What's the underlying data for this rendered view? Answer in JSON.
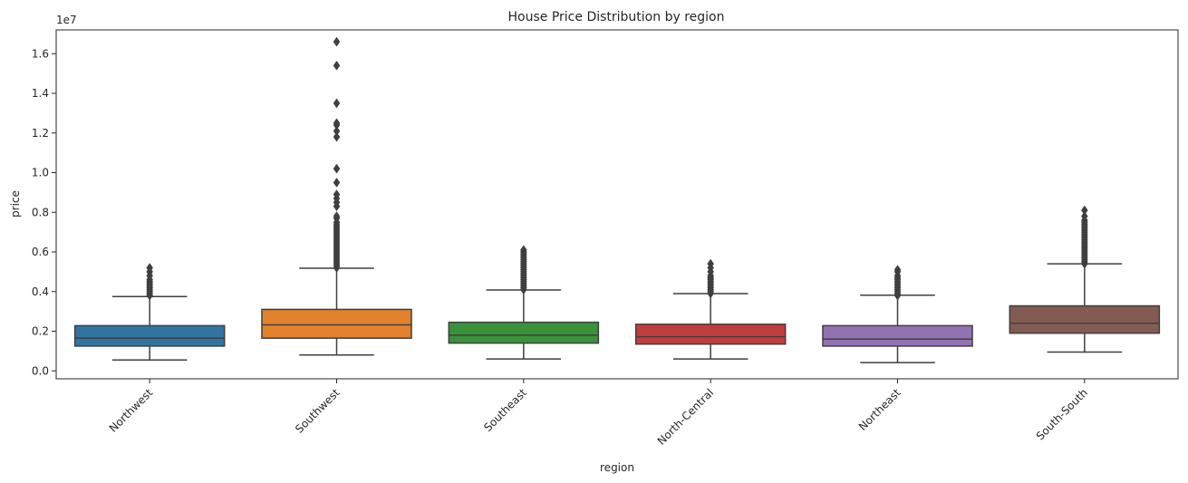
{
  "chart_data": {
    "type": "box",
    "title": "House Price Distribution by region",
    "xlabel": "region",
    "ylabel": "price",
    "offset_label": "1e7",
    "y_unit_multiplier": 10000000,
    "ylim": [
      -0.04,
      1.72
    ],
    "yticks": [
      0.0,
      0.2,
      0.4,
      0.6,
      0.8,
      1.0,
      1.2,
      1.4,
      1.6
    ],
    "yticklabels": [
      "0.0",
      "0.2",
      "0.4",
      "0.6",
      "0.8",
      "1.0",
      "1.2",
      "1.4",
      "1.6"
    ],
    "grid": false,
    "categories": [
      "Northwest",
      "Southwest",
      "Southeast",
      "North-Central",
      "Northeast",
      "South-South"
    ],
    "boxes": [
      {
        "category": "Northwest",
        "color": "#3274a1",
        "whisker_low": 0.055,
        "q1": 0.125,
        "median": 0.165,
        "q3": 0.228,
        "whisker_high": 0.375,
        "outliers": [
          0.38,
          0.39,
          0.4,
          0.41,
          0.42,
          0.43,
          0.44,
          0.45,
          0.46,
          0.48,
          0.5,
          0.52
        ]
      },
      {
        "category": "Southwest",
        "color": "#e1812c",
        "whisker_low": 0.08,
        "q1": 0.165,
        "median": 0.232,
        "q3": 0.31,
        "whisker_high": 0.518,
        "outliers": [
          0.52,
          0.53,
          0.54,
          0.55,
          0.56,
          0.57,
          0.58,
          0.59,
          0.6,
          0.61,
          0.62,
          0.63,
          0.64,
          0.65,
          0.66,
          0.67,
          0.68,
          0.69,
          0.7,
          0.71,
          0.72,
          0.73,
          0.74,
          0.75,
          0.77,
          0.78,
          0.83,
          0.85,
          0.87,
          0.89,
          0.95,
          1.02,
          1.18,
          1.21,
          1.24,
          1.25,
          1.35,
          1.54,
          1.66
        ]
      },
      {
        "category": "Southeast",
        "color": "#3a923a",
        "whisker_low": 0.06,
        "q1": 0.14,
        "median": 0.18,
        "q3": 0.245,
        "whisker_high": 0.408,
        "outliers": [
          0.41,
          0.42,
          0.43,
          0.44,
          0.45,
          0.46,
          0.47,
          0.48,
          0.49,
          0.5,
          0.51,
          0.52,
          0.53,
          0.54,
          0.55,
          0.56,
          0.57,
          0.58,
          0.59,
          0.6,
          0.61
        ]
      },
      {
        "category": "North-Central",
        "color": "#c03d3e",
        "whisker_low": 0.06,
        "q1": 0.135,
        "median": 0.172,
        "q3": 0.235,
        "whisker_high": 0.39,
        "outliers": [
          0.39,
          0.4,
          0.41,
          0.42,
          0.43,
          0.44,
          0.45,
          0.46,
          0.47,
          0.48,
          0.5,
          0.52,
          0.54
        ]
      },
      {
        "category": "Northeast",
        "color": "#9372b2",
        "whisker_low": 0.042,
        "q1": 0.125,
        "median": 0.16,
        "q3": 0.228,
        "whisker_high": 0.382,
        "outliers": [
          0.38,
          0.39,
          0.4,
          0.41,
          0.42,
          0.43,
          0.44,
          0.45,
          0.46,
          0.47,
          0.48,
          0.5,
          0.51
        ]
      },
      {
        "category": "South-South",
        "color": "#845b53",
        "whisker_low": 0.095,
        "q1": 0.19,
        "median": 0.24,
        "q3": 0.328,
        "whisker_high": 0.54,
        "outliers": [
          0.54,
          0.55,
          0.56,
          0.57,
          0.58,
          0.59,
          0.6,
          0.61,
          0.62,
          0.63,
          0.64,
          0.65,
          0.66,
          0.67,
          0.68,
          0.69,
          0.7,
          0.71,
          0.72,
          0.73,
          0.74,
          0.75,
          0.76,
          0.78,
          0.81
        ]
      }
    ]
  }
}
